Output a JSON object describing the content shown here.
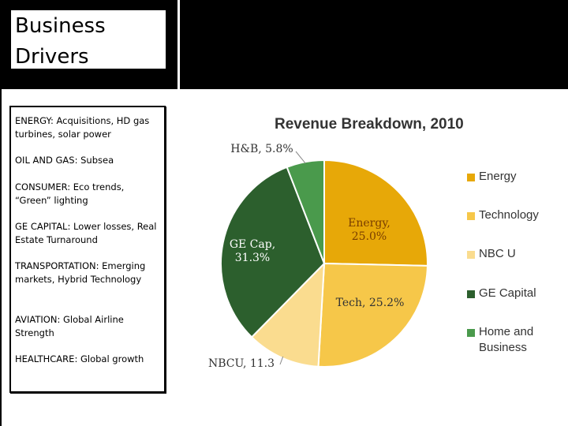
{
  "slide_title": "Business Drivers",
  "drivers": [
    {
      "name": "ENERGY",
      "text": ":  Acquisitions, HD gas turbines, solar power"
    },
    {
      "name": "OIL AND GAS",
      "text": ": Subsea"
    },
    {
      "name": "CONSUMER",
      "text": ": Eco trends, “Green” lighting"
    },
    {
      "name": "GE CAPITAL",
      "text": ": Lower losses, Real Estate Turnaround"
    },
    {
      "name": "TRANSPORTATION",
      "text": ": Emerging markets, Hybrid Technology"
    },
    {
      "name": "AVIATION",
      "text": ": Global Airline Strength"
    },
    {
      "name": "HEALTHCARE",
      "text": ": Global growth"
    }
  ],
  "chart_data": {
    "type": "pie",
    "title": "Revenue Breakdown, 2010",
    "categories": [
      "Energy",
      "Technology",
      "NBC U",
      "GE Capital",
      "Home and Business"
    ],
    "values": [
      25.0,
      25.2,
      11.3,
      31.3,
      5.8
    ],
    "slice_labels": [
      "Energy,\n25.0%",
      "Tech, 25.2%",
      "NBCU, 11.3",
      "GE Cap,\n31.3%",
      "H&B, 5.8%"
    ],
    "colors": [
      "#e7a808",
      "#f6c749",
      "#fadc8f",
      "#2c5f2d",
      "#4a9a4c"
    ],
    "start_angle_deg": 0,
    "legend_position": "right"
  }
}
